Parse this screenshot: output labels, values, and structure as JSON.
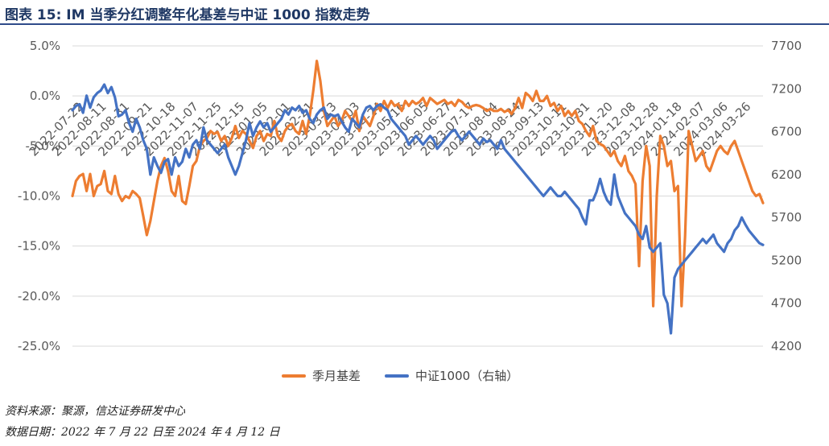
{
  "figure": {
    "title": "图表 15:  IM 当季分红调整年化基差与中证 1000 指数走势",
    "source_line": "资料来源：聚源，信达证券研发中心",
    "date_line": "数据日期：2022 年 7 月 22 日至 2024 年 4 月 12 日"
  },
  "colors": {
    "basis": "#ed7d31",
    "index": "#4472c4",
    "grid": "#d9d9d9",
    "axis_text": "#595959",
    "title": "#1f3864"
  },
  "chart_data": {
    "type": "line",
    "title": "",
    "xlabel": "",
    "ylabel": "",
    "y_left": {
      "ylim": [
        -25,
        5
      ],
      "ticks": [
        "5.0%",
        "0.0%",
        "-5.0%",
        "-10.0%",
        "-15.0%",
        "-20.0%",
        "-25.0%"
      ],
      "tick_values": [
        5,
        0,
        -5,
        -10,
        -15,
        -20,
        -25
      ]
    },
    "y_right": {
      "ylim": [
        4200,
        7700
      ],
      "ticks": [
        "7700",
        "7200",
        "6700",
        "6200",
        "5700",
        "5200",
        "4700",
        "4200"
      ],
      "tick_values": [
        7700,
        7200,
        6700,
        6200,
        5700,
        5200,
        4700,
        4200
      ]
    },
    "x_tick_labels": [
      "2022-07-22",
      "2022-08-11",
      "2022-08-31",
      "2022-09-21",
      "2022-10-18",
      "2022-11-07",
      "2022-11-25",
      "2022-12-15",
      "2023-01-05",
      "2023-02-01",
      "2023-02-21",
      "2023-03-13",
      "2023-04-03",
      "2023-04-24",
      "2023-05-16",
      "2023-06-05",
      "2023-06-27",
      "2023-07-17",
      "2023-08-04",
      "2023-08-24",
      "2023-09-13",
      "2023-10-11",
      "2023-10-31",
      "2023-11-20",
      "2023-12-08",
      "2023-12-28",
      "2024-01-18",
      "2024-02-07",
      "2024-03-06",
      "2024-03-26"
    ],
    "grid": true,
    "legend_position": "bottom",
    "series": [
      {
        "name": "季月基差",
        "axis": "left",
        "values": [
          -10.0,
          -8.5,
          -8.0,
          -7.8,
          -9.5,
          -7.8,
          -10.0,
          -9.0,
          -8.8,
          -7.5,
          -9.5,
          -9.8,
          -8.0,
          -9.8,
          -10.5,
          -10.0,
          -10.2,
          -9.5,
          -9.8,
          -10.2,
          -12.0,
          -13.9,
          -12.5,
          -10.5,
          -8.5,
          -7.0,
          -6.2,
          -7.5,
          -9.5,
          -10.0,
          -8.0,
          -10.5,
          -10.8,
          -9.0,
          -7.0,
          -6.5,
          -5.0,
          -4.5,
          -4.2,
          -3.5,
          -3.8,
          -3.6,
          -4.5,
          -4.0,
          -5.0,
          -4.2,
          -3.0,
          -4.2,
          -3.5,
          -3.8,
          -4.5,
          -5.2,
          -4.0,
          -3.5,
          -4.5,
          -3.8,
          -4.0,
          -2.5,
          -4.0,
          -4.5,
          -3.5,
          -3.0,
          -2.8,
          -3.5,
          -3.8,
          -2.5,
          -3.8,
          -2.0,
          0.5,
          3.5,
          1.5,
          -1.5,
          -3.0,
          -2.5,
          -2.0,
          -3.0,
          -2.5,
          -1.5,
          -2.0,
          -2.5,
          -1.5,
          -3.5,
          -2.0,
          -2.5,
          -3.0,
          -2.0,
          -0.8,
          -1.5,
          -0.5,
          -1.2,
          -0.5,
          -1.0,
          -0.8,
          -1.5,
          -0.5,
          -1.0,
          -0.5,
          -0.8,
          -0.6,
          -0.2,
          -1.0,
          -0.2,
          -0.5,
          -0.8,
          -0.6,
          -0.4,
          -0.8,
          -0.6,
          -1.0,
          -0.4,
          -0.6,
          -1.0,
          -1.2,
          -1.0,
          -0.9,
          -1.0,
          -1.2,
          -1.5,
          -1.3,
          -1.5,
          -1.5,
          -1.3,
          -1.6,
          -1.4,
          -1.8,
          -1.2,
          -0.2,
          -1.2,
          0.3,
          0.0,
          -0.5,
          0.5,
          -0.5,
          -0.5,
          0.0,
          -1.0,
          -0.7,
          -1.5,
          -1.0,
          -2.0,
          -1.5,
          -2.0,
          -1.5,
          -2.5,
          -2.8,
          -3.5,
          -4.0,
          -3.0,
          -4.5,
          -4.8,
          -5.0,
          -5.5,
          -6.0,
          -5.5,
          -6.5,
          -7.0,
          -6.0,
          -7.5,
          -8.0,
          -8.8,
          -17.0,
          -8.5,
          -5.0,
          -7.0,
          -21.0,
          -10.0,
          -4.0,
          -5.0,
          -7.0,
          -6.5,
          -9.5,
          -9.0,
          -21.0,
          -14.0,
          -3.5,
          -5.0,
          -6.5,
          -6.0,
          -5.5,
          -7.0,
          -7.5,
          -6.5,
          -5.5,
          -5.0,
          -5.5,
          -5.8,
          -5.0,
          -4.5,
          -5.5,
          -6.5,
          -7.5,
          -8.5,
          -9.5,
          -10.0,
          -9.8,
          -10.7
        ]
      },
      {
        "name": "中证1000（右轴）",
        "axis": "right",
        "values": [
          6950,
          7000,
          7020,
          6920,
          7120,
          6980,
          7100,
          7150,
          7180,
          7250,
          7150,
          7220,
          7100,
          6880,
          6900,
          6950,
          6800,
          6700,
          6850,
          6750,
          6600,
          6500,
          6200,
          6400,
          6300,
          6220,
          6350,
          6380,
          6200,
          6400,
          6300,
          6350,
          6500,
          6400,
          6550,
          6600,
          6500,
          6750,
          6600,
          6550,
          6500,
          6450,
          6500,
          6550,
          6400,
          6300,
          6200,
          6300,
          6450,
          6600,
          6800,
          6650,
          6750,
          6820,
          6750,
          6800,
          6700,
          6750,
          6800,
          6850,
          6950,
          6900,
          6980,
          6950,
          7000,
          6920,
          6950,
          6850,
          6800,
          6900,
          6950,
          6980,
          6850,
          6900,
          6880,
          6900,
          6820,
          6750,
          6700,
          6850,
          6800,
          6750,
          6900,
          6980,
          7000,
          6950,
          7000,
          7020,
          6980,
          6950,
          6850,
          6800,
          6750,
          6700,
          6650,
          6550,
          6600,
          6650,
          6600,
          6550,
          6600,
          6650,
          6600,
          6500,
          6550,
          6600,
          6650,
          6700,
          6720,
          6650,
          6600,
          6650,
          6700,
          6650,
          6600,
          6550,
          6620,
          6580,
          6600,
          6550,
          6500,
          6600,
          6500,
          6450,
          6400,
          6350,
          6300,
          6250,
          6200,
          6150,
          6100,
          6050,
          6000,
          5950,
          6000,
          6050,
          6000,
          5950,
          5950,
          6000,
          5950,
          5900,
          5850,
          5800,
          5700,
          5620,
          5900,
          5900,
          6000,
          6150,
          6000,
          5900,
          5850,
          6200,
          5950,
          5850,
          5750,
          5700,
          5650,
          5600,
          5500,
          5450,
          5600,
          5350,
          5300,
          5350,
          5400,
          4800,
          4700,
          4350,
          5000,
          5100,
          5150,
          5200,
          5250,
          5300,
          5350,
          5400,
          5450,
          5400,
          5450,
          5500,
          5400,
          5350,
          5300,
          5400,
          5450,
          5550,
          5600,
          5700,
          5620,
          5550,
          5500,
          5450,
          5400,
          5380
        ]
      }
    ]
  }
}
